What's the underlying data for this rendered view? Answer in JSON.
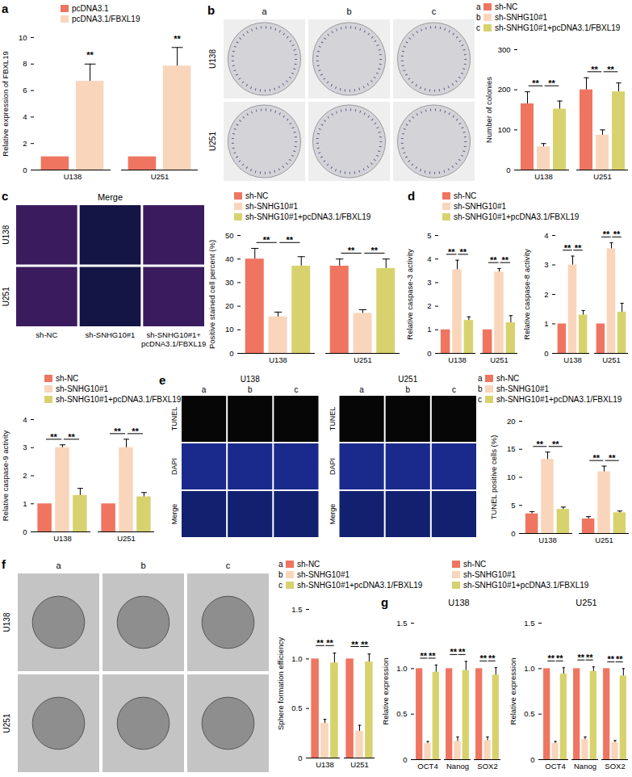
{
  "chart_data": [
    {
      "type": "bar",
      "panel": "a",
      "legend": "top",
      "ylabel": "Relative expression of FBXL19",
      "categories": [
        "U138",
        "U251"
      ],
      "ylim": [
        0,
        10
      ],
      "yticks": [
        0,
        2,
        4,
        6,
        8,
        10
      ],
      "series": [
        {
          "name": "pcDNA3.1",
          "color": "#ef7561",
          "values": [
            1,
            1
          ],
          "errors": [
            0,
            0
          ]
        },
        {
          "name": "pcDNA3.1/FBXL19",
          "color": "#f9d5bb",
          "values": [
            6.7,
            7.85
          ],
          "errors": [
            1.3,
            1.4
          ]
        }
      ],
      "significance": [
        {
          "category": "U138",
          "pair": [
            "pcDNA3.1/FBXL19"
          ],
          "label": "**"
        },
        {
          "category": "U251",
          "pair": [
            "pcDNA3.1/FBXL19"
          ],
          "label": "**"
        }
      ]
    },
    {
      "type": "bar",
      "legend": "top",
      "keys": [
        "a",
        "b",
        "c"
      ],
      "ylabel": "Number of colonies",
      "categories": [
        "U138",
        "U251"
      ],
      "ylim": [
        0,
        300
      ],
      "yticks": [
        0,
        100,
        200,
        300
      ],
      "series": [
        {
          "name": "sh-NC",
          "color": "#ef7561",
          "values": [
            165,
            200
          ],
          "errors": [
            30,
            30
          ]
        },
        {
          "name": "sh-SNHG10#1",
          "color": "#f9d5bb",
          "values": [
            58,
            87
          ],
          "errors": [
            8,
            13
          ]
        },
        {
          "name": "sh-SNHG10#1+pcDNA3.1/FBXL19",
          "color": "#d8d26e",
          "values": [
            152,
            195
          ],
          "errors": [
            20,
            22
          ]
        }
      ],
      "significance": [
        {
          "category": "U138",
          "pair": [
            "sh-NC",
            "sh-SNHG10#1"
          ],
          "label": "**"
        },
        {
          "category": "U138",
          "pair": [
            "sh-SNHG10#1",
            "sh-SNHG10#1+pcDNA3.1/FBXL19"
          ],
          "label": "**"
        },
        {
          "category": "U251",
          "pair": [
            "sh-NC",
            "sh-SNHG10#1"
          ],
          "label": "**"
        },
        {
          "category": "U251",
          "pair": [
            "sh-SNHG10#1",
            "sh-SNHG10#1+pcDNA3.1/FBXL19"
          ],
          "label": "**"
        }
      ]
    },
    {
      "type": "bar",
      "legend": "top",
      "ylabel": "Positive stained cell percent (%)",
      "categories": [
        "U138",
        "U251"
      ],
      "ylim": [
        0,
        50
      ],
      "yticks": [
        0,
        10,
        20,
        30,
        40,
        50
      ],
      "series": [
        {
          "name": "sh-NC",
          "color": "#ef7561",
          "values": [
            40,
            37
          ],
          "errors": [
            4.5,
            3
          ]
        },
        {
          "name": "sh-SNHG10#1",
          "color": "#f9d5bb",
          "values": [
            15.5,
            17
          ],
          "errors": [
            2,
            1.5
          ]
        },
        {
          "name": "sh-SNHG10#1+pcDNA3.1/FBXL19",
          "color": "#d8d26e",
          "values": [
            37,
            36
          ],
          "errors": [
            4,
            4
          ]
        }
      ],
      "significance": [
        {
          "category": "U138",
          "pair": [
            "sh-NC",
            "sh-SNHG10#1"
          ],
          "label": "**"
        },
        {
          "category": "U138",
          "pair": [
            "sh-SNHG10#1",
            "sh-SNHG10#1+pcDNA3.1/FBXL19"
          ],
          "label": "**"
        },
        {
          "category": "U251",
          "pair": [
            "sh-NC",
            "sh-SNHG10#1"
          ],
          "label": "**"
        },
        {
          "category": "U251",
          "pair": [
            "sh-SNHG10#1",
            "sh-SNHG10#1+pcDNA3.1/FBXL19"
          ],
          "label": "**"
        }
      ]
    },
    {
      "type": "bar",
      "panel": "d",
      "legend": "top",
      "ylabel": "Relative caspase-3 activity",
      "categories": [
        "U138",
        "U251"
      ],
      "ylim": [
        0,
        5
      ],
      "yticks": [
        0,
        1,
        2,
        3,
        4,
        5
      ],
      "series": [
        {
          "name": "sh-NC",
          "color": "#ef7561",
          "values": [
            1,
            1
          ],
          "errors": [
            0,
            0
          ]
        },
        {
          "name": "sh-SNHG10#1",
          "color": "#f9d5bb",
          "values": [
            3.55,
            3.45
          ],
          "errors": [
            0.4,
            0.15
          ]
        },
        {
          "name": "sh-SNHG10#1+pcDNA3.1/FBXL19",
          "color": "#d8d26e",
          "values": [
            1.4,
            1.3
          ],
          "errors": [
            0.15,
            0.3
          ]
        }
      ],
      "significance": [
        {
          "category": "U138",
          "pair": [
            "sh-NC",
            "sh-SNHG10#1"
          ],
          "label": "**"
        },
        {
          "category": "U138",
          "pair": [
            "sh-SNHG10#1",
            "sh-SNHG10#1+pcDNA3.1/FBXL19"
          ],
          "label": "**"
        },
        {
          "category": "U251",
          "pair": [
            "sh-NC",
            "sh-SNHG10#1"
          ],
          "label": "**"
        },
        {
          "category": "U251",
          "pair": [
            "sh-SNHG10#1",
            "sh-SNHG10#1+pcDNA3.1/FBXL19"
          ],
          "label": "**"
        }
      ]
    },
    {
      "type": "bar",
      "ylabel": "Relative caspase-8 activity",
      "categories": [
        "U138",
        "U251"
      ],
      "ylim": [
        0,
        4
      ],
      "yticks": [
        0,
        1,
        2,
        3,
        4
      ],
      "series": [
        {
          "name": "sh-NC",
          "color": "#ef7561",
          "values": [
            1,
            1
          ],
          "errors": [
            0,
            0
          ]
        },
        {
          "name": "sh-SNHG10#1",
          "color": "#f9d5bb",
          "values": [
            3.0,
            3.55
          ],
          "errors": [
            0.3,
            0.2
          ]
        },
        {
          "name": "sh-SNHG10#1+pcDNA3.1/FBXL19",
          "color": "#d8d26e",
          "values": [
            1.3,
            1.4
          ],
          "errors": [
            0.15,
            0.3
          ]
        }
      ],
      "significance": [
        {
          "category": "U138",
          "pair": [
            "sh-NC",
            "sh-SNHG10#1"
          ],
          "label": "**"
        },
        {
          "category": "U138",
          "pair": [
            "sh-SNHG10#1",
            "sh-SNHG10#1+pcDNA3.1/FBXL19"
          ],
          "label": "**"
        },
        {
          "category": "U251",
          "pair": [
            "sh-NC",
            "sh-SNHG10#1"
          ],
          "label": "**"
        },
        {
          "category": "U251",
          "pair": [
            "sh-SNHG10#1",
            "sh-SNHG10#1+pcDNA3.1/FBXL19"
          ],
          "label": "**"
        }
      ]
    },
    {
      "type": "bar",
      "legend": "top",
      "ylabel": "Relative caspase-9 activity",
      "categories": [
        "U138",
        "U251"
      ],
      "ylim": [
        0,
        4
      ],
      "yticks": [
        0,
        1,
        2,
        3,
        4
      ],
      "series": [
        {
          "name": "sh-NC",
          "color": "#ef7561",
          "values": [
            1,
            1
          ],
          "errors": [
            0,
            0
          ]
        },
        {
          "name": "sh-SNHG10#1",
          "color": "#f9d5bb",
          "values": [
            3.0,
            3.0
          ],
          "errors": [
            0.1,
            0.3
          ]
        },
        {
          "name": "sh-SNHG10#1+pcDNA3.1/FBXL19",
          "color": "#d8d26e",
          "values": [
            1.3,
            1.25
          ],
          "errors": [
            0.25,
            0.15
          ]
        }
      ],
      "significance": [
        {
          "category": "U138",
          "pair": [
            "sh-NC",
            "sh-SNHG10#1"
          ],
          "label": "**"
        },
        {
          "category": "U138",
          "pair": [
            "sh-SNHG10#1",
            "sh-SNHG10#1+pcDNA3.1/FBXL19"
          ],
          "label": "**"
        },
        {
          "category": "U251",
          "pair": [
            "sh-NC",
            "sh-SNHG10#1"
          ],
          "label": "**"
        },
        {
          "category": "U251",
          "pair": [
            "sh-SNHG10#1",
            "sh-SNHG10#1+pcDNA3.1/FBXL19"
          ],
          "label": "**"
        }
      ]
    },
    {
      "type": "bar",
      "legend": "top",
      "keys": [
        "a",
        "b",
        "c"
      ],
      "ylabel": "TUNEL positive cells (%)",
      "categories": [
        "U138",
        "U251"
      ],
      "ylim": [
        0,
        20
      ],
      "yticks": [
        0,
        5,
        10,
        15,
        20
      ],
      "series": [
        {
          "name": "sh-NC",
          "color": "#ef7561",
          "values": [
            3.5,
            2.6
          ],
          "errors": [
            0.4,
            0.4
          ]
        },
        {
          "name": "sh-SNHG10#1",
          "color": "#f9d5bb",
          "values": [
            13.2,
            11
          ],
          "errors": [
            1.3,
            1
          ]
        },
        {
          "name": "sh-SNHG10#1+pcDNA3.1/FBXL19",
          "color": "#d8d26e",
          "values": [
            4.3,
            3.7
          ],
          "errors": [
            0.4,
            0.3
          ]
        }
      ],
      "significance": [
        {
          "category": "U138",
          "pair": [
            "sh-NC",
            "sh-SNHG10#1"
          ],
          "label": "**"
        },
        {
          "category": "U138",
          "pair": [
            "sh-SNHG10#1",
            "sh-SNHG10#1+pcDNA3.1/FBXL19"
          ],
          "label": "**"
        },
        {
          "category": "U251",
          "pair": [
            "sh-NC",
            "sh-SNHG10#1"
          ],
          "label": "**"
        },
        {
          "category": "U251",
          "pair": [
            "sh-SNHG10#1",
            "sh-SNHG10#1+pcDNA3.1/FBXL19"
          ],
          "label": "**"
        }
      ]
    },
    {
      "type": "bar",
      "legend": "top",
      "keys": [
        "a",
        "b",
        "c"
      ],
      "ylabel": "Sphere formation efficiency",
      "categories": [
        "U138",
        "U251"
      ],
      "ylim": [
        0,
        1.5
      ],
      "yticks": [
        0,
        0.5,
        {
          "value": 1,
          "label": "1.0"
        },
        1.5
      ],
      "series": [
        {
          "name": "sh-NC",
          "color": "#ef7561",
          "values": [
            1,
            1
          ],
          "errors": [
            0,
            0
          ]
        },
        {
          "name": "sh-SNHG10#1",
          "color": "#f9d5bb",
          "values": [
            0.35,
            0.27
          ],
          "errors": [
            0.04,
            0.06
          ]
        },
        {
          "name": "sh-SNHG10#1+pcDNA3.1/FBXL19",
          "color": "#d8d26e",
          "values": [
            0.96,
            0.97
          ],
          "errors": [
            0.1,
            0.08
          ]
        }
      ],
      "significance": [
        {
          "category": "U138",
          "pair": [
            "sh-NC",
            "sh-SNHG10#1"
          ],
          "label": "**"
        },
        {
          "category": "U138",
          "pair": [
            "sh-SNHG10#1",
            "sh-SNHG10#1+pcDNA3.1/FBXL19"
          ],
          "label": "**"
        },
        {
          "category": "U251",
          "pair": [
            "sh-NC",
            "sh-SNHG10#1"
          ],
          "label": "**"
        },
        {
          "category": "U251",
          "pair": [
            "sh-SNHG10#1",
            "sh-SNHG10#1+pcDNA3.1/FBXL19"
          ],
          "label": "**"
        }
      ]
    },
    {
      "type": "bar",
      "panel": "g",
      "legend": "top",
      "title": "U138",
      "ylabel": "Relative expression",
      "categories": [
        "OCT4",
        "Nanog",
        "SOX2"
      ],
      "ylim": [
        0,
        1.5
      ],
      "yticks": [
        0,
        0.5,
        {
          "value": 1,
          "label": "1.0"
        },
        1.5
      ],
      "series": [
        {
          "name": "sh-NC",
          "color": "#ef7561",
          "values": [
            1,
            1,
            1
          ],
          "errors": [
            0,
            0,
            0
          ]
        },
        {
          "name": "sh-SNHG10#1",
          "color": "#f9d5bb",
          "values": [
            0.18,
            0.2,
            0.21
          ],
          "errors": [
            0.02,
            0.05,
            0.04
          ]
        },
        {
          "name": "sh-SNHG10#1+pcDNA3.1/FBXL19",
          "color": "#d8d26e",
          "values": [
            0.96,
            0.98,
            0.93
          ],
          "errors": [
            0.08,
            0.1,
            0.08
          ]
        }
      ],
      "significance": [
        {
          "category": "OCT4",
          "pair": [
            "sh-NC",
            "sh-SNHG10#1"
          ],
          "label": "**"
        },
        {
          "category": "OCT4",
          "pair": [
            "sh-SNHG10#1",
            "sh-SNHG10#1+pcDNA3.1/FBXL19"
          ],
          "label": "**"
        },
        {
          "category": "Nanog",
          "pair": [
            "sh-NC",
            "sh-SNHG10#1"
          ],
          "label": "**"
        },
        {
          "category": "Nanog",
          "pair": [
            "sh-SNHG10#1",
            "sh-SNHG10#1+pcDNA3.1/FBXL19"
          ],
          "label": "**"
        },
        {
          "category": "SOX2",
          "pair": [
            "sh-NC",
            "sh-SNHG10#1"
          ],
          "label": "**"
        },
        {
          "category": "SOX2",
          "pair": [
            "sh-SNHG10#1",
            "sh-SNHG10#1+pcDNA3.1/FBXL19"
          ],
          "label": "**"
        }
      ]
    },
    {
      "type": "bar",
      "title": "U251",
      "ylabel": "Relative expression",
      "categories": [
        "OCT4",
        "Nanog",
        "SOX2"
      ],
      "ylim": [
        0,
        1.5
      ],
      "yticks": [
        0,
        0.5,
        {
          "value": 1,
          "label": "1.0"
        },
        1.5
      ],
      "series": [
        {
          "name": "sh-NC",
          "color": "#ef7561",
          "values": [
            1,
            1,
            1
          ],
          "errors": [
            0,
            0,
            0
          ]
        },
        {
          "name": "sh-SNHG10#1",
          "color": "#f9d5bb",
          "values": [
            0.18,
            0.22,
            0.19
          ],
          "errors": [
            0.02,
            0.03,
            0.02
          ]
        },
        {
          "name": "sh-SNHG10#1+pcDNA3.1/FBXL19",
          "color": "#d8d26e",
          "values": [
            0.94,
            0.97,
            0.92
          ],
          "errors": [
            0.07,
            0.05,
            0.08
          ]
        }
      ],
      "significance": [
        {
          "category": "OCT4",
          "pair": [
            "sh-NC",
            "sh-SNHG10#1"
          ],
          "label": "**"
        },
        {
          "category": "OCT4",
          "pair": [
            "sh-SNHG10#1",
            "sh-SNHG10#1+pcDNA3.1/FBXL19"
          ],
          "label": "**"
        },
        {
          "category": "Nanog",
          "pair": [
            "sh-NC",
            "sh-SNHG10#1"
          ],
          "label": "**"
        },
        {
          "category": "Nanog",
          "pair": [
            "sh-SNHG10#1",
            "sh-SNHG10#1+pcDNA3.1/FBXL19"
          ],
          "label": "**"
        },
        {
          "category": "SOX2",
          "pair": [
            "sh-NC",
            "sh-SNHG10#1"
          ],
          "label": "**"
        },
        {
          "category": "SOX2",
          "pair": [
            "sh-SNHG10#1",
            "sh-SNHG10#1+pcDNA3.1/FBXL19"
          ],
          "label": "**"
        }
      ]
    }
  ],
  "images": [
    {
      "panel": "b",
      "type": "plate",
      "columns": [
        "a",
        "b",
        "c"
      ],
      "rows": [
        "U138",
        "U251"
      ]
    },
    {
      "panel": "c",
      "type": "fluorescence",
      "title": "Merge",
      "rows": [
        "U138",
        "U251"
      ],
      "columns": [
        "sh-NC",
        "sh-SNHG10#1",
        "sh-SNHG10#1+\npcDNA3.1/FBXL19"
      ]
    },
    {
      "panel": "e",
      "type": "tunel",
      "groups": [
        "U138",
        "U251"
      ],
      "columns": [
        "a",
        "b",
        "c"
      ],
      "rows": [
        "TUNEL",
        "DAPI",
        "Merge"
      ]
    },
    {
      "panel": "f",
      "type": "sphere",
      "columns": [
        "a",
        "b",
        "c"
      ],
      "rows": [
        "U138",
        "U251"
      ]
    }
  ]
}
